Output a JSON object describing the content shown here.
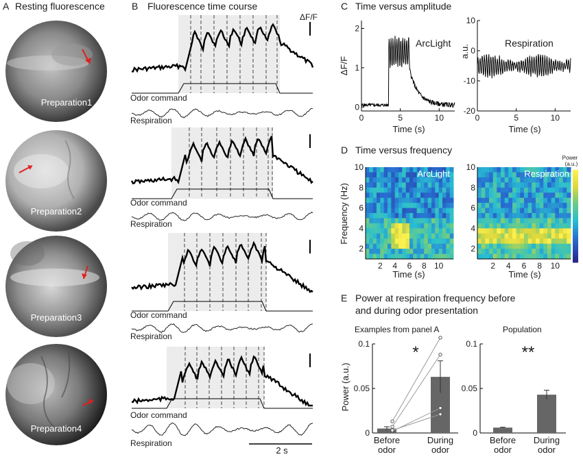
{
  "panelA": {
    "letter": "A",
    "title": "Resting fluorescence",
    "preparations": [
      "Preparation1",
      "Preparation2",
      "Preparation3",
      "Preparation4"
    ]
  },
  "panelB": {
    "letter": "B",
    "title": "Fluorescence time course",
    "scale_label": "ΔF/F",
    "time_scale_label": "2 s",
    "odor_label": "Odor command",
    "resp_label": "Respiration"
  },
  "panelC": {
    "letter": "C",
    "title": "Time versus amplitude",
    "ylabel_left": "ΔF/F",
    "ylabel_right": "a.u.",
    "xlabel": "Time (s)",
    "left_name": "ArcLight",
    "right_name": "Respiration"
  },
  "panelD": {
    "letter": "D",
    "title": "Time versus frequency",
    "ylabel": "Frequency (Hz)",
    "xlabel": "Time (s)",
    "left_name": "ArcLight",
    "right_name": "Respiration",
    "power_label": "Power",
    "power_unit": "(a.u.)"
  },
  "panelE": {
    "letter": "E",
    "title_line1": "Power at respiration frequency before",
    "title_line2": "and during odor presentation",
    "left_subtitle": "Examples from panel A",
    "right_subtitle": "Population",
    "ylabel": "Power (a.u.)",
    "cat1_line1": "Before",
    "cat1_line2": "odor",
    "cat2_line1": "During",
    "cat2_line2": "odor",
    "sig_left": "*",
    "sig_right": "**"
  },
  "chart_data": [
    {
      "id": "C-left",
      "type": "line",
      "title": "ArcLight",
      "xlabel": "Time (s)",
      "ylabel": "ΔF/F",
      "xlim": [
        0,
        12
      ],
      "ylim": [
        -0.1,
        2.2
      ],
      "xticks": [
        0,
        5,
        10
      ],
      "yticks": [
        0,
        1,
        2
      ],
      "odor_window": [
        3.5,
        6.2
      ],
      "baseline": 0.05,
      "plateau": 1.4,
      "osc_amp": 0.35,
      "osc_hz": 4
    },
    {
      "id": "C-right",
      "type": "line",
      "title": "Respiration",
      "xlabel": "Time (s)",
      "ylabel": "a.u.",
      "xlim": [
        0,
        12
      ],
      "ylim": [
        -20,
        10
      ],
      "xticks": [
        0,
        5,
        10
      ],
      "yticks": [
        -20,
        -10,
        0,
        10
      ],
      "mean": -5,
      "osc_amp": 3.5,
      "osc_hz": 3.6
    },
    {
      "id": "D-left",
      "type": "heatmap",
      "title": "ArcLight",
      "xlabel": "Time (s)",
      "ylabel": "Frequency (Hz)",
      "xlim": [
        0,
        12
      ],
      "ylim": [
        1,
        10
      ],
      "xticks": [
        2,
        4,
        6,
        8,
        10
      ],
      "yticks": [
        2,
        4,
        6,
        8,
        10
      ],
      "hot_freq_band": [
        2,
        4.5
      ],
      "hot_time_window": [
        3.5,
        6
      ]
    },
    {
      "id": "D-right",
      "type": "heatmap",
      "title": "Respiration",
      "xlabel": "Time (s)",
      "ylabel": "Frequency (Hz)",
      "xlim": [
        0,
        12
      ],
      "ylim": [
        1,
        10
      ],
      "xticks": [
        2,
        4,
        6,
        8,
        10
      ],
      "yticks": [
        2,
        4,
        6,
        8,
        10
      ],
      "hot_freq_band": [
        2.5,
        4.2
      ]
    },
    {
      "id": "E-left",
      "type": "bar",
      "title": "Examples from panel A",
      "categories": [
        "Before odor",
        "During odor"
      ],
      "values": [
        0.005,
        0.063
      ],
      "errors": [
        0.002,
        0.018
      ],
      "ylim": [
        0,
        0.1
      ],
      "yticks": [
        0,
        0.05,
        0.1
      ],
      "ylabel": "Power (a.u.)",
      "pairs": [
        [
          0.013,
          0.107
        ],
        [
          0.007,
          0.088
        ],
        [
          0.002,
          0.028
        ],
        [
          0.003,
          0.021
        ]
      ]
    },
    {
      "id": "E-right",
      "type": "bar",
      "title": "Population",
      "categories": [
        "Before odor",
        "During odor"
      ],
      "values": [
        0.006,
        0.043
      ],
      "errors": [
        0.0005,
        0.005
      ],
      "ylim": [
        0,
        0.1
      ],
      "yticks": [
        0,
        0.05,
        0.1
      ]
    }
  ],
  "colors": {
    "arrow": "#e02020",
    "trace": "#000000",
    "shade": "#ececec"
  }
}
